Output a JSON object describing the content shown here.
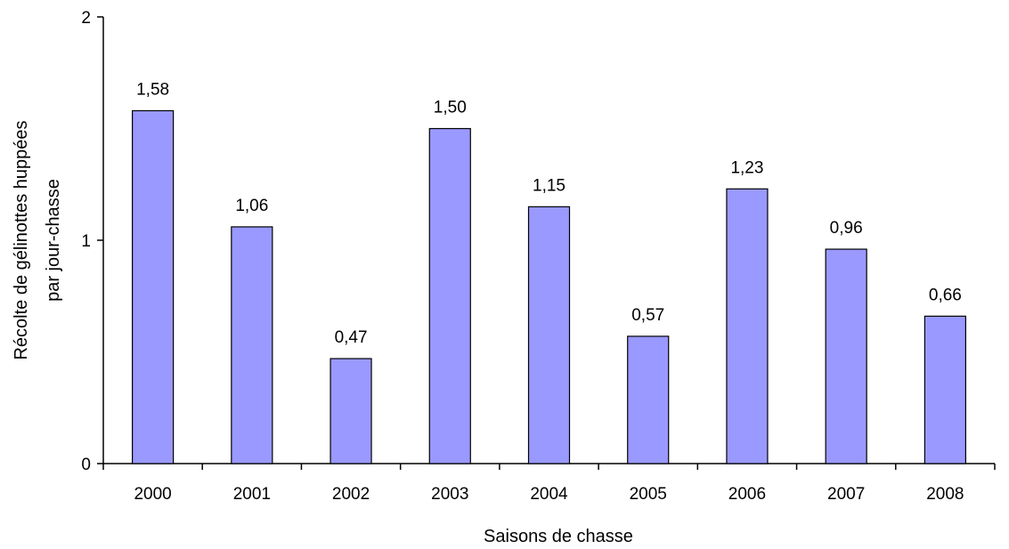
{
  "chart_data": {
    "type": "bar",
    "categories": [
      "2000",
      "2001",
      "2002",
      "2003",
      "2004",
      "2005",
      "2006",
      "2007",
      "2008"
    ],
    "values": [
      1.58,
      1.06,
      0.47,
      1.5,
      1.15,
      0.57,
      1.23,
      0.96,
      0.66
    ],
    "value_labels": [
      "1,58",
      "1,06",
      "0,47",
      "1,50",
      "1,15",
      "0,57",
      "1,23",
      "0,96",
      "0,66"
    ],
    "xlabel": "Saisons de chasse",
    "ylabel_line1": "Récolte de gélinottes huppées",
    "ylabel_line2": "par jour-chasse",
    "ylim": [
      0,
      2
    ],
    "yticks": [
      0,
      1,
      2
    ],
    "grid": false,
    "colors": {
      "bar_fill": "#9999ff",
      "bar_stroke": "#000000"
    }
  }
}
